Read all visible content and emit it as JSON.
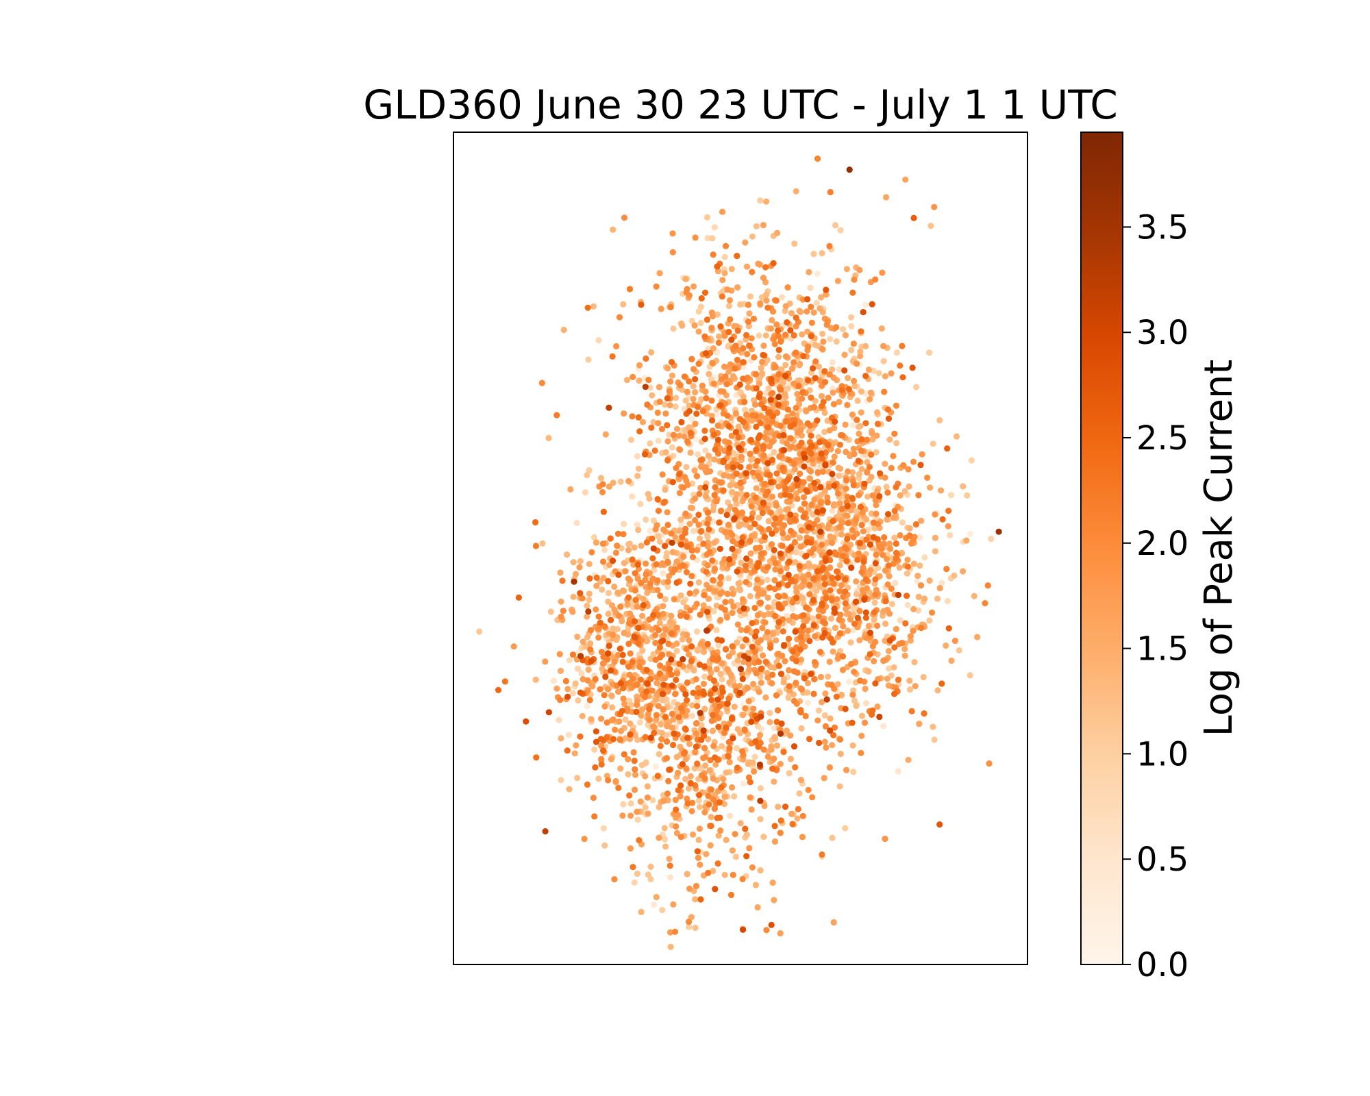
{
  "chart_data": {
    "type": "scatter",
    "title": "GLD360 June 30 23 UTC - July 1 1 UTC",
    "xlabel": "",
    "ylabel": "",
    "axes_ticks_visible": false,
    "grid": false,
    "colormap": "Oranges",
    "colormap_stops": [
      "#fff5eb",
      "#fee6ce",
      "#fdd0a2",
      "#fdae6b",
      "#fd8d3c",
      "#f16913",
      "#d94801",
      "#a63603",
      "#7f2704"
    ],
    "colorbar": {
      "label": "Log of Peak Current",
      "range": [
        0.0,
        3.95
      ],
      "ticks": [
        0.0,
        0.5,
        1.0,
        1.5,
        2.0,
        2.5,
        3.0,
        3.5
      ],
      "tick_labels": [
        "0.0",
        "0.5",
        "1.0",
        "1.5",
        "2.0",
        "2.5",
        "3.0",
        "3.5"
      ],
      "placement": "right"
    },
    "xlim": [
      0,
      1
    ],
    "ylim": [
      0,
      1
    ],
    "point_count": 4200,
    "clusters": [
      {
        "cx": 0.52,
        "cy": 0.5,
        "sx": 0.13,
        "sy": 0.16,
        "weight": 0.32
      },
      {
        "cx": 0.55,
        "cy": 0.66,
        "sx": 0.1,
        "sy": 0.1,
        "weight": 0.22
      },
      {
        "cx": 0.68,
        "cy": 0.47,
        "sx": 0.09,
        "sy": 0.08,
        "weight": 0.18
      },
      {
        "cx": 0.43,
        "cy": 0.28,
        "sx": 0.08,
        "sy": 0.1,
        "weight": 0.16
      },
      {
        "cx": 0.3,
        "cy": 0.38,
        "sx": 0.06,
        "sy": 0.07,
        "weight": 0.12
      }
    ],
    "outliers": [
      {
        "x": 0.69,
        "y": 0.955,
        "v": 3.7
      },
      {
        "x": 0.95,
        "y": 0.52,
        "v": 3.6
      },
      {
        "x": 0.86,
        "y": 0.62,
        "v": 2.6
      },
      {
        "x": 0.18,
        "y": 0.66,
        "v": 2.2
      },
      {
        "x": 0.045,
        "y": 0.4,
        "v": 1.1
      },
      {
        "x": 0.16,
        "y": 0.16,
        "v": 3.2
      },
      {
        "x": 0.21,
        "y": 0.46,
        "v": 3.5
      },
      {
        "x": 0.41,
        "y": 0.045,
        "v": 1.0
      },
      {
        "x": 0.253,
        "y": 0.75,
        "v": 0.8
      },
      {
        "x": 0.09,
        "y": 0.34,
        "v": 2.3
      }
    ],
    "value_mean": 1.65,
    "value_sd": 0.55
  }
}
